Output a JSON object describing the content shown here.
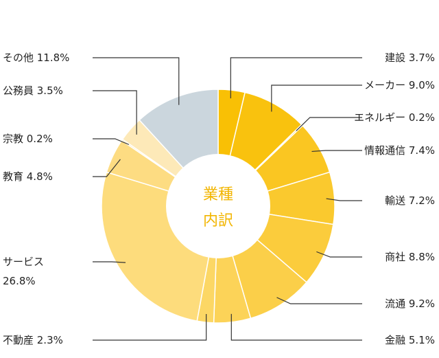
{
  "chart_data": {
    "type": "pie",
    "center_label": [
      "業種",
      "内訳"
    ],
    "slices": [
      {
        "name": "建設",
        "value": 3.7,
        "label": "建設 3.7%",
        "color": "#f9c005"
      },
      {
        "name": "メーカー",
        "value": 9.0,
        "label": "メーカー 9.0%",
        "color": "#f9c20e"
      },
      {
        "name": "エネルギー",
        "value": 0.2,
        "label": "エネルギー 0.2%",
        "color": "#f9c417"
      },
      {
        "name": "情報通信",
        "value": 7.4,
        "label": "情報通信 7.4%",
        "color": "#fac622"
      },
      {
        "name": "輸送",
        "value": 7.2,
        "label": "輸送 7.2%",
        "color": "#fac92e"
      },
      {
        "name": "商社",
        "value": 8.8,
        "label": "商社 8.8%",
        "color": "#fbcc3c"
      },
      {
        "name": "流通",
        "value": 9.2,
        "label": "流通 9.2%",
        "color": "#fbcf49"
      },
      {
        "name": "金融",
        "value": 5.1,
        "label": "金融 5.1%",
        "color": "#fcd358"
      },
      {
        "name": "不動産",
        "value": 2.3,
        "label": "不動産 2.3%",
        "color": "#fcd765"
      },
      {
        "name": "サービス",
        "value": 26.8,
        "label": "サービス 26.8%",
        "color": "#fddc7c"
      },
      {
        "name": "教育",
        "value": 4.8,
        "label": "教育 4.8%",
        "color": "#fddc82"
      },
      {
        "name": "宗教",
        "value": 0.2,
        "label": "宗教 0.2%",
        "color": "#fde0a0"
      },
      {
        "name": "公務員",
        "value": 3.5,
        "label": "公務員 3.5%",
        "color": "#fde9b8"
      },
      {
        "name": "その他",
        "value": 11.8,
        "label": "その他 11.8%",
        "color": "#cbd6dd"
      }
    ]
  },
  "colors": {
    "center_text": "#f2b500",
    "leader_line": "#333333"
  }
}
